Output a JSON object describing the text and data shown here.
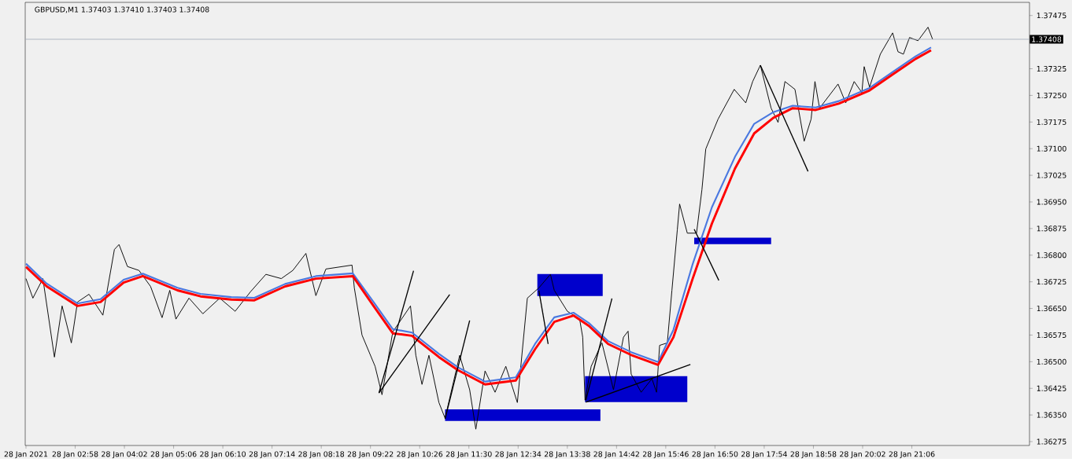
{
  "chart_data": {
    "type": "line",
    "title": "GBPUSD,M1  1.37403 1.37410 1.37403 1.37408",
    "xlim": [
      "2021-01-28T01:53",
      "2021-01-28T23:39"
    ],
    "ylim": [
      1.36264,
      1.37512
    ],
    "xticks": [
      {
        "value": "2021-01-28T01:54",
        "label": "28 Jan 2021"
      },
      {
        "value": "2021-01-28T02:58",
        "label": "28 Jan 02:58"
      },
      {
        "value": "2021-01-28T04:02",
        "label": "28 Jan 04:02"
      },
      {
        "value": "2021-01-28T05:06",
        "label": "28 Jan 05:06"
      },
      {
        "value": "2021-01-28T06:10",
        "label": "28 Jan 06:10"
      },
      {
        "value": "2021-01-28T07:14",
        "label": "28 Jan 07:14"
      },
      {
        "value": "2021-01-28T08:18",
        "label": "28 Jan 08:18"
      },
      {
        "value": "2021-01-28T09:22",
        "label": "28 Jan 09:22"
      },
      {
        "value": "2021-01-28T10:26",
        "label": "28 Jan 10:26"
      },
      {
        "value": "2021-01-28T11:30",
        "label": "28 Jan 11:30"
      },
      {
        "value": "2021-01-28T12:34",
        "label": "28 Jan 12:34"
      },
      {
        "value": "2021-01-28T13:38",
        "label": "28 Jan 13:38"
      },
      {
        "value": "2021-01-28T14:42",
        "label": "28 Jan 14:42"
      },
      {
        "value": "2021-01-28T15:46",
        "label": "28 Jan 15:46"
      },
      {
        "value": "2021-01-28T16:50",
        "label": "28 Jan 16:50"
      },
      {
        "value": "2021-01-28T17:54",
        "label": "28 Jan 17:54"
      },
      {
        "value": "2021-01-28T18:58",
        "label": "28 Jan 18:58"
      },
      {
        "value": "2021-01-28T20:02",
        "label": "28 Jan 20:02"
      },
      {
        "value": "2021-01-28T21:06",
        "label": "28 Jan 21:06"
      }
    ],
    "yticks": [
      1.37475,
      {
        "value": 1.374,
        "label": null
      },
      1.37325,
      {
        "value": 1.3725,
        "label": "1.37250"
      },
      1.37175,
      {
        "value": 1.371,
        "label": "1.37100"
      },
      1.37025,
      {
        "value": 1.3695,
        "label": "1.36950"
      },
      1.36875,
      {
        "value": 1.368,
        "label": "1.36800"
      },
      1.36725,
      {
        "value": 1.3665,
        "label": "1.36650"
      },
      1.36575,
      {
        "value": 1.365,
        "label": "1.36500"
      },
      1.36425,
      {
        "value": 1.3635,
        "label": "1.36350"
      },
      1.36275
    ],
    "ref_lines": [
      {
        "axis": "y",
        "value": 1.37408,
        "label": "1.37408",
        "color": "#a0a8b8"
      }
    ],
    "series": [
      {
        "color": "#000000",
        "x": [
          "2021-01-28T01:54",
          "2021-01-28T02:03",
          "2021-01-28T02:16",
          "2021-01-28T02:31",
          "2021-01-28T02:41",
          "2021-01-28T02:53",
          "2021-01-28T03:01",
          "2021-01-28T03:16",
          "2021-01-28T03:34",
          "2021-01-28T03:49",
          "2021-01-28T03:55",
          "2021-01-28T04:06",
          "2021-01-28T04:21",
          "2021-01-28T04:36",
          "2021-01-28T04:51",
          "2021-01-28T05:01",
          "2021-01-28T05:09",
          "2021-01-28T05:26",
          "2021-01-28T05:44",
          "2021-01-28T06:06",
          "2021-01-28T06:26",
          "2021-01-28T06:46",
          "2021-01-28T07:06",
          "2021-01-28T07:26",
          "2021-01-28T07:41",
          "2021-01-28T07:58",
          "2021-01-28T08:11",
          "2021-01-28T08:24",
          "2021-01-28T08:58",
          "2021-01-28T09:01",
          "2021-01-28T09:11",
          "2021-01-28T09:28",
          "2021-01-28T09:37",
          "2021-01-28T09:51",
          "2021-01-28T10:14",
          "2021-01-28T10:21",
          "2021-01-28T10:29",
          "2021-01-28T10:38",
          "2021-01-28T10:51",
          "2021-01-28T10:59",
          "2021-01-28T11:18",
          "2021-01-28T11:31",
          "2021-01-28T11:39",
          "2021-01-28T11:51",
          "2021-01-28T12:04",
          "2021-01-28T12:18",
          "2021-01-28T12:33",
          "2021-01-28T12:46",
          "2021-01-28T13:01",
          "2021-01-28T13:16",
          "2021-01-28T13:21",
          "2021-01-28T13:38",
          "2021-01-28T13:54",
          "2021-01-28T13:58",
          "2021-01-28T14:01",
          "2021-01-28T14:09",
          "2021-01-28T14:23",
          "2021-01-28T14:38",
          "2021-01-28T14:51",
          "2021-01-28T14:57",
          "2021-01-28T15:01",
          "2021-01-28T15:14",
          "2021-01-28T15:28",
          "2021-01-28T15:34",
          "2021-01-28T15:38",
          "2021-01-28T15:48",
          "2021-01-28T15:54",
          "2021-01-28T16:01",
          "2021-01-28T16:04",
          "2021-01-28T16:14",
          "2021-01-28T16:26",
          "2021-01-28T16:33",
          "2021-01-28T16:38",
          "2021-01-28T16:54",
          "2021-01-28T17:15",
          "2021-01-28T17:30",
          "2021-01-28T17:39",
          "2021-01-28T17:49",
          "2021-01-28T18:03",
          "2021-01-28T18:12",
          "2021-01-28T18:21",
          "2021-01-28T18:34",
          "2021-01-28T18:46",
          "2021-01-28T18:55",
          "2021-01-28T19:00",
          "2021-01-28T19:06",
          "2021-01-28T19:30",
          "2021-01-28T19:40",
          "2021-01-28T19:51",
          "2021-01-28T20:01",
          "2021-01-28T20:04",
          "2021-01-28T20:11",
          "2021-01-28T20:25",
          "2021-01-28T20:41",
          "2021-01-28T20:48",
          "2021-01-28T20:55",
          "2021-01-28T21:03",
          "2021-01-28T21:14",
          "2021-01-28T21:27",
          "2021-01-28T21:33"
        ],
        "values": [
          1.36734,
          1.36679,
          1.36734,
          1.36513,
          1.36657,
          1.36553,
          1.36668,
          1.3669,
          1.36631,
          1.36816,
          1.3683,
          1.36768,
          1.36757,
          1.36712,
          1.36624,
          1.36701,
          1.3662,
          1.36679,
          1.36635,
          1.36679,
          1.36642,
          1.36697,
          1.36746,
          1.36734,
          1.36757,
          1.36805,
          1.36686,
          1.36761,
          1.36772,
          1.36708,
          1.36575,
          1.36487,
          1.36407,
          1.36584,
          1.36657,
          1.36518,
          1.36436,
          1.36518,
          1.36385,
          1.36341,
          1.36518,
          1.36421,
          1.3631,
          1.36474,
          1.36414,
          1.36487,
          1.36385,
          1.36679,
          1.36708,
          1.36746,
          1.36701,
          1.36642,
          1.3662,
          1.36569,
          1.36392,
          1.36487,
          1.36553,
          1.36421,
          1.36569,
          1.36586,
          1.36465,
          1.36414,
          1.36452,
          1.36414,
          1.36546,
          1.36553,
          1.36701,
          1.36871,
          1.36944,
          1.36862,
          1.36862,
          1.36984,
          1.37099,
          1.37183,
          1.37267,
          1.37229,
          1.37289,
          1.37335,
          1.37214,
          1.37174,
          1.37289,
          1.37267,
          1.37121,
          1.37183,
          1.37289,
          1.37214,
          1.37282,
          1.37229,
          1.37289,
          1.37258,
          1.37331,
          1.37273,
          1.37366,
          1.37426,
          1.37373,
          1.37366,
          1.37413,
          1.37404,
          1.37442,
          1.37408
        ]
      },
      {
        "color": "#4a78e0",
        "x": [
          "2021-01-28T01:54",
          "2021-01-28T02:21",
          "2021-01-28T03:01",
          "2021-01-28T03:31",
          "2021-01-28T04:01",
          "2021-01-28T04:26",
          "2021-01-28T05:11",
          "2021-01-28T05:41",
          "2021-01-28T06:21",
          "2021-01-28T06:51",
          "2021-01-28T07:31",
          "2021-01-28T08:11",
          "2021-01-28T08:59",
          "2021-01-28T09:26",
          "2021-01-28T09:51",
          "2021-01-28T10:16",
          "2021-01-28T10:51",
          "2021-01-28T11:16",
          "2021-01-28T11:51",
          "2021-01-28T12:31",
          "2021-01-28T12:56",
          "2021-01-28T13:21",
          "2021-01-28T13:46",
          "2021-01-28T14:06",
          "2021-01-28T14:31",
          "2021-01-28T15:01",
          "2021-01-28T15:36",
          "2021-01-28T15:56",
          "2021-01-28T16:21",
          "2021-01-28T16:46",
          "2021-01-28T17:16",
          "2021-01-28T17:41",
          "2021-01-28T18:06",
          "2021-01-28T18:31",
          "2021-01-28T19:01",
          "2021-01-28T19:31",
          "2021-01-28T20:11",
          "2021-01-28T20:41",
          "2021-01-28T21:11",
          "2021-01-28T21:31"
        ],
        "values": [
          1.36776,
          1.3672,
          1.36664,
          1.36676,
          1.36731,
          1.36748,
          1.36708,
          1.36691,
          1.36682,
          1.3668,
          1.36719,
          1.36741,
          1.36749,
          1.36668,
          1.36592,
          1.36582,
          1.36522,
          1.36484,
          1.36444,
          1.36456,
          1.3655,
          1.36625,
          1.36638,
          1.36609,
          1.36558,
          1.36527,
          1.36499,
          1.3659,
          1.36775,
          1.36935,
          1.37077,
          1.3717,
          1.37203,
          1.37221,
          1.37216,
          1.37234,
          1.37271,
          1.37316,
          1.3736,
          1.37385
        ]
      },
      {
        "color": "#ff0000",
        "x": [
          "2021-01-28T01:54",
          "2021-01-28T02:21",
          "2021-01-28T03:01",
          "2021-01-28T03:31",
          "2021-01-28T04:01",
          "2021-01-28T04:26",
          "2021-01-28T05:11",
          "2021-01-28T05:41",
          "2021-01-28T06:21",
          "2021-01-28T06:51",
          "2021-01-28T07:31",
          "2021-01-28T08:11",
          "2021-01-28T08:59",
          "2021-01-28T09:26",
          "2021-01-28T09:51",
          "2021-01-28T10:16",
          "2021-01-28T10:51",
          "2021-01-28T11:16",
          "2021-01-28T11:51",
          "2021-01-28T12:31",
          "2021-01-28T12:56",
          "2021-01-28T13:21",
          "2021-01-28T13:46",
          "2021-01-28T14:06",
          "2021-01-28T14:31",
          "2021-01-28T15:01",
          "2021-01-28T15:36",
          "2021-01-28T15:56",
          "2021-01-28T16:21",
          "2021-01-28T16:46",
          "2021-01-28T17:16",
          "2021-01-28T17:41",
          "2021-01-28T18:06",
          "2021-01-28T18:31",
          "2021-01-28T19:01",
          "2021-01-28T19:31",
          "2021-01-28T20:11",
          "2021-01-28T20:41",
          "2021-01-28T21:11",
          "2021-01-28T21:31"
        ],
        "values": [
          1.36767,
          1.36712,
          1.36657,
          1.36668,
          1.36723,
          1.36741,
          1.36701,
          1.36684,
          1.36675,
          1.36673,
          1.36712,
          1.36734,
          1.36741,
          1.36657,
          1.3658,
          1.36573,
          1.36513,
          1.36476,
          1.36436,
          1.36447,
          1.36535,
          1.36612,
          1.3663,
          1.36601,
          1.3655,
          1.36519,
          1.36491,
          1.36569,
          1.36734,
          1.36889,
          1.37044,
          1.37143,
          1.37187,
          1.37214,
          1.37209,
          1.37227,
          1.37264,
          1.37309,
          1.37353,
          1.37377
        ]
      },
      {
        "color": "#000000",
        "x": [
          "2021-01-28T09:33",
          "2021-01-28T10:18"
        ],
        "values": [
          1.36412,
          1.36756
        ]
      },
      {
        "color": "#000000",
        "x": [
          "2021-01-28T09:33",
          "2021-01-28T11:05"
        ],
        "values": [
          1.36412,
          1.36689
        ]
      },
      {
        "color": "#000000",
        "x": [
          "2021-01-28T10:59",
          "2021-01-28T11:31"
        ],
        "values": [
          1.36339,
          1.36616
        ]
      },
      {
        "color": "#000000",
        "x": [
          "2021-01-28T13:01",
          "2021-01-28T13:13"
        ],
        "values": [
          1.367,
          1.3655
        ]
      },
      {
        "color": "#000000",
        "x": [
          "2021-01-28T14:02",
          "2021-01-28T14:36"
        ],
        "values": [
          1.36391,
          1.36678
        ]
      },
      {
        "color": "#000000",
        "x": [
          "2021-01-28T14:02",
          "2021-01-28T16:18"
        ],
        "values": [
          1.36386,
          1.36492
        ]
      },
      {
        "color": "#000000",
        "x": [
          "2021-01-28T16:23",
          "2021-01-28T16:55"
        ],
        "values": [
          1.36873,
          1.36729
        ]
      },
      {
        "color": "#000000",
        "x": [
          "2021-01-28T17:49",
          "2021-01-28T18:51"
        ],
        "values": [
          1.37335,
          1.37036
        ]
      },
      {
        "type": "area",
        "color": "#0000cc",
        "x": [
          "2021-01-28T12:59",
          "2021-01-28T14:24"
        ],
        "values": [
          null,
          null
        ],
        "upper": [
          1.36747,
          1.36747
        ],
        "lower": [
          1.36685,
          1.36685
        ]
      },
      {
        "type": "area",
        "color": "#0000cc",
        "x": [
          "2021-01-28T10:59",
          "2021-01-28T14:21"
        ],
        "values": [
          null,
          null
        ],
        "upper": [
          1.36366,
          1.36366
        ],
        "lower": [
          1.36333,
          1.36333
        ]
      },
      {
        "type": "area",
        "color": "#0000cc",
        "x": [
          "2021-01-28T14:01",
          "2021-01-28T16:14"
        ],
        "values": [
          null,
          null
        ],
        "upper": [
          1.36459,
          1.36459
        ],
        "lower": [
          1.36386,
          1.36386
        ]
      },
      {
        "type": "area",
        "color": "#0000cc",
        "x": [
          "2021-01-28T16:23",
          "2021-01-28T18:03"
        ],
        "values": [
          null,
          null
        ],
        "upper": [
          1.36849,
          1.36849
        ],
        "lower": [
          1.36831,
          1.36831
        ]
      }
    ]
  }
}
